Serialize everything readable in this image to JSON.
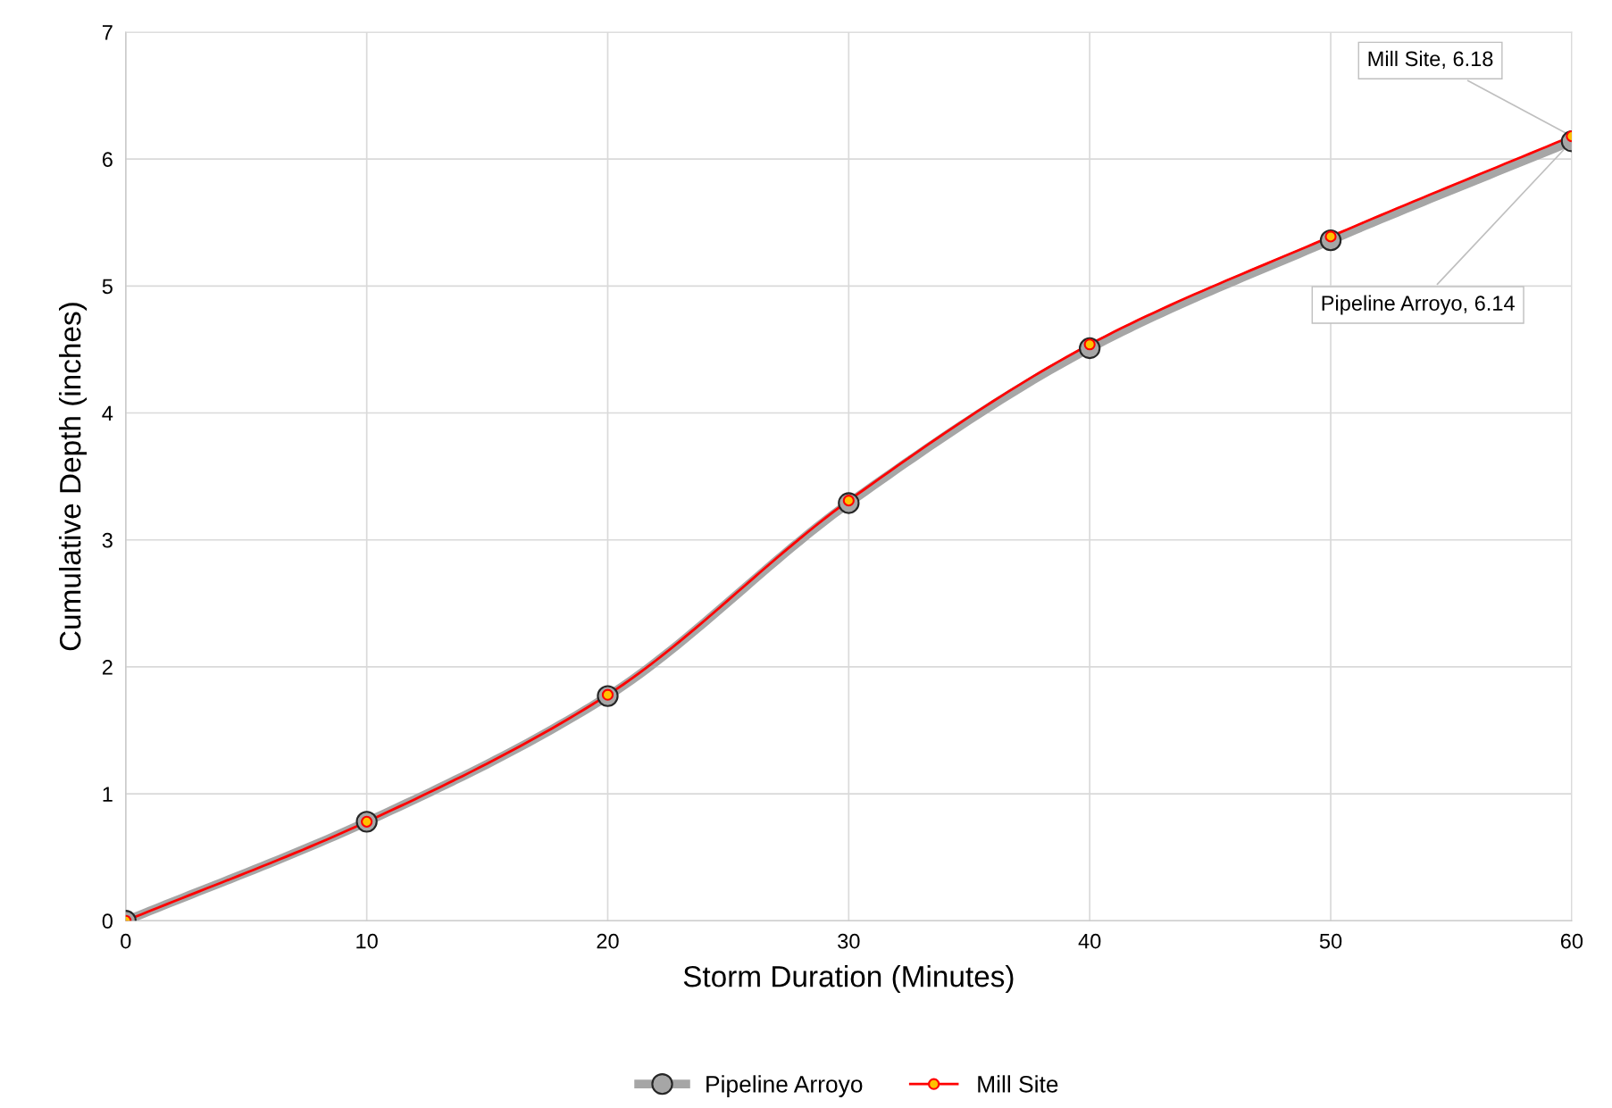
{
  "chart_data": {
    "type": "line",
    "xlabel": "Storm Duration (Minutes)",
    "ylabel": "Cumulative Depth (inches)",
    "x": [
      0,
      10,
      20,
      30,
      40,
      50,
      60
    ],
    "series": [
      {
        "name": "Pipeline Arroyo",
        "color": "#a6a6a6",
        "values": [
          0,
          0.78,
          1.77,
          3.29,
          4.51,
          5.36,
          6.14
        ]
      },
      {
        "name": "Mill Site",
        "color": "#ff0000",
        "values": [
          0,
          0.78,
          1.78,
          3.31,
          4.54,
          5.39,
          6.18
        ]
      }
    ],
    "xlim": [
      0,
      60
    ],
    "xticks": [
      0,
      10,
      20,
      30,
      40,
      50,
      60
    ],
    "ylim": [
      0,
      7
    ],
    "yticks": [
      0,
      1,
      2,
      3,
      4,
      5,
      6,
      7
    ],
    "grid": true,
    "legend": "bottom",
    "marker": "circle",
    "line_style": "solid",
    "annotations": [
      {
        "text": "Mill Site, 6.18",
        "x": 60,
        "y": 6.18
      },
      {
        "text": "Pipeline Arroyo, 6.14",
        "x": 60,
        "y": 6.14
      }
    ]
  }
}
